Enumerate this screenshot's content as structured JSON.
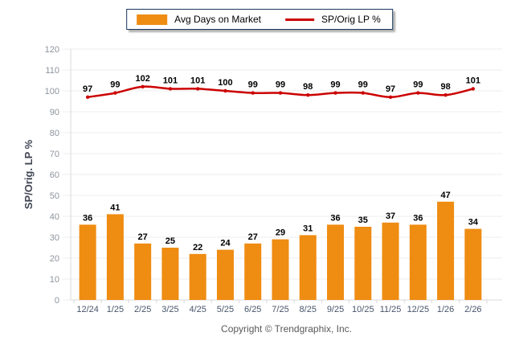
{
  "legend": {
    "bar_label": "Avg Days on Market",
    "line_label": "SP/Orig LP %"
  },
  "colors": {
    "bar": "#EF8C12",
    "line": "#CC0000",
    "grid": "#ECECEF",
    "axis_line": "#D8D8DB",
    "value_label": "#000000",
    "x_tick_label": "#47556A",
    "y_tick_label": "#8D939C",
    "y_axis_title": "#3E4553",
    "legend_border": "#16375D",
    "copyright": "#58595B"
  },
  "chart_data": {
    "type": "bar+line",
    "categories": [
      "12/24",
      "1/25",
      "2/25",
      "3/25",
      "4/25",
      "5/25",
      "6/25",
      "7/25",
      "8/25",
      "9/25",
      "10/25",
      "11/25",
      "12/25",
      "1/26",
      "2/26"
    ],
    "series": [
      {
        "name": "Avg Days on Market",
        "type": "bar",
        "values": [
          36,
          41,
          27,
          25,
          22,
          24,
          27,
          29,
          31,
          36,
          35,
          37,
          36,
          47,
          34
        ]
      },
      {
        "name": "SP/Orig LP %",
        "type": "line",
        "values": [
          97,
          99,
          102,
          101,
          101,
          100,
          99,
          99,
          98,
          99,
          99,
          97,
          99,
          98,
          101
        ]
      }
    ],
    "title": "",
    "xlabel": "",
    "ylabel": "SP/Orig. LP %",
    "ylim": [
      0,
      120
    ],
    "ytick_step": 10,
    "grid": "horizontal",
    "legend_position": "top-center",
    "data_labels": true
  },
  "footer": {
    "copyright": "Copyright © Trendgraphix, Inc."
  }
}
